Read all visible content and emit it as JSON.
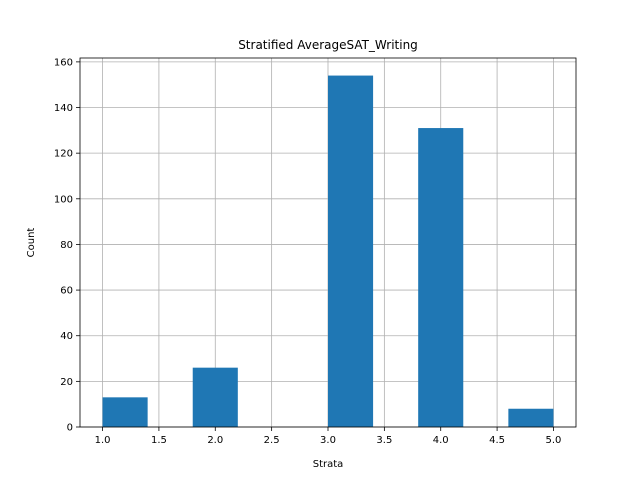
{
  "chart_data": {
    "type": "bar",
    "title": "Stratified AverageSAT_Writing",
    "xlabel": "Strata",
    "ylabel": "Count",
    "bins": [
      {
        "x0": 1.0,
        "x1": 1.4,
        "count": 13
      },
      {
        "x0": 1.4,
        "x1": 1.8,
        "count": 0
      },
      {
        "x0": 1.8,
        "x1": 2.2,
        "count": 26
      },
      {
        "x0": 2.2,
        "x1": 2.6,
        "count": 0
      },
      {
        "x0": 2.6,
        "x1": 3.0,
        "count": 0
      },
      {
        "x0": 3.0,
        "x1": 3.4,
        "count": 154
      },
      {
        "x0": 3.4,
        "x1": 3.8,
        "count": 0
      },
      {
        "x0": 3.8,
        "x1": 4.2,
        "count": 131
      },
      {
        "x0": 4.2,
        "x1": 4.6,
        "count": 0
      },
      {
        "x0": 4.6,
        "x1": 5.0,
        "count": 8
      }
    ],
    "xlim": [
      0.8,
      5.2
    ],
    "ylim": [
      0,
      161.7
    ],
    "xticks": [
      "1.0",
      "1.5",
      "2.0",
      "2.5",
      "3.0",
      "3.5",
      "4.0",
      "4.5",
      "5.0"
    ],
    "yticks": [
      "0",
      "20",
      "40",
      "60",
      "80",
      "100",
      "120",
      "140",
      "160"
    ],
    "grid": true,
    "bar_color": "#1f77b4"
  }
}
